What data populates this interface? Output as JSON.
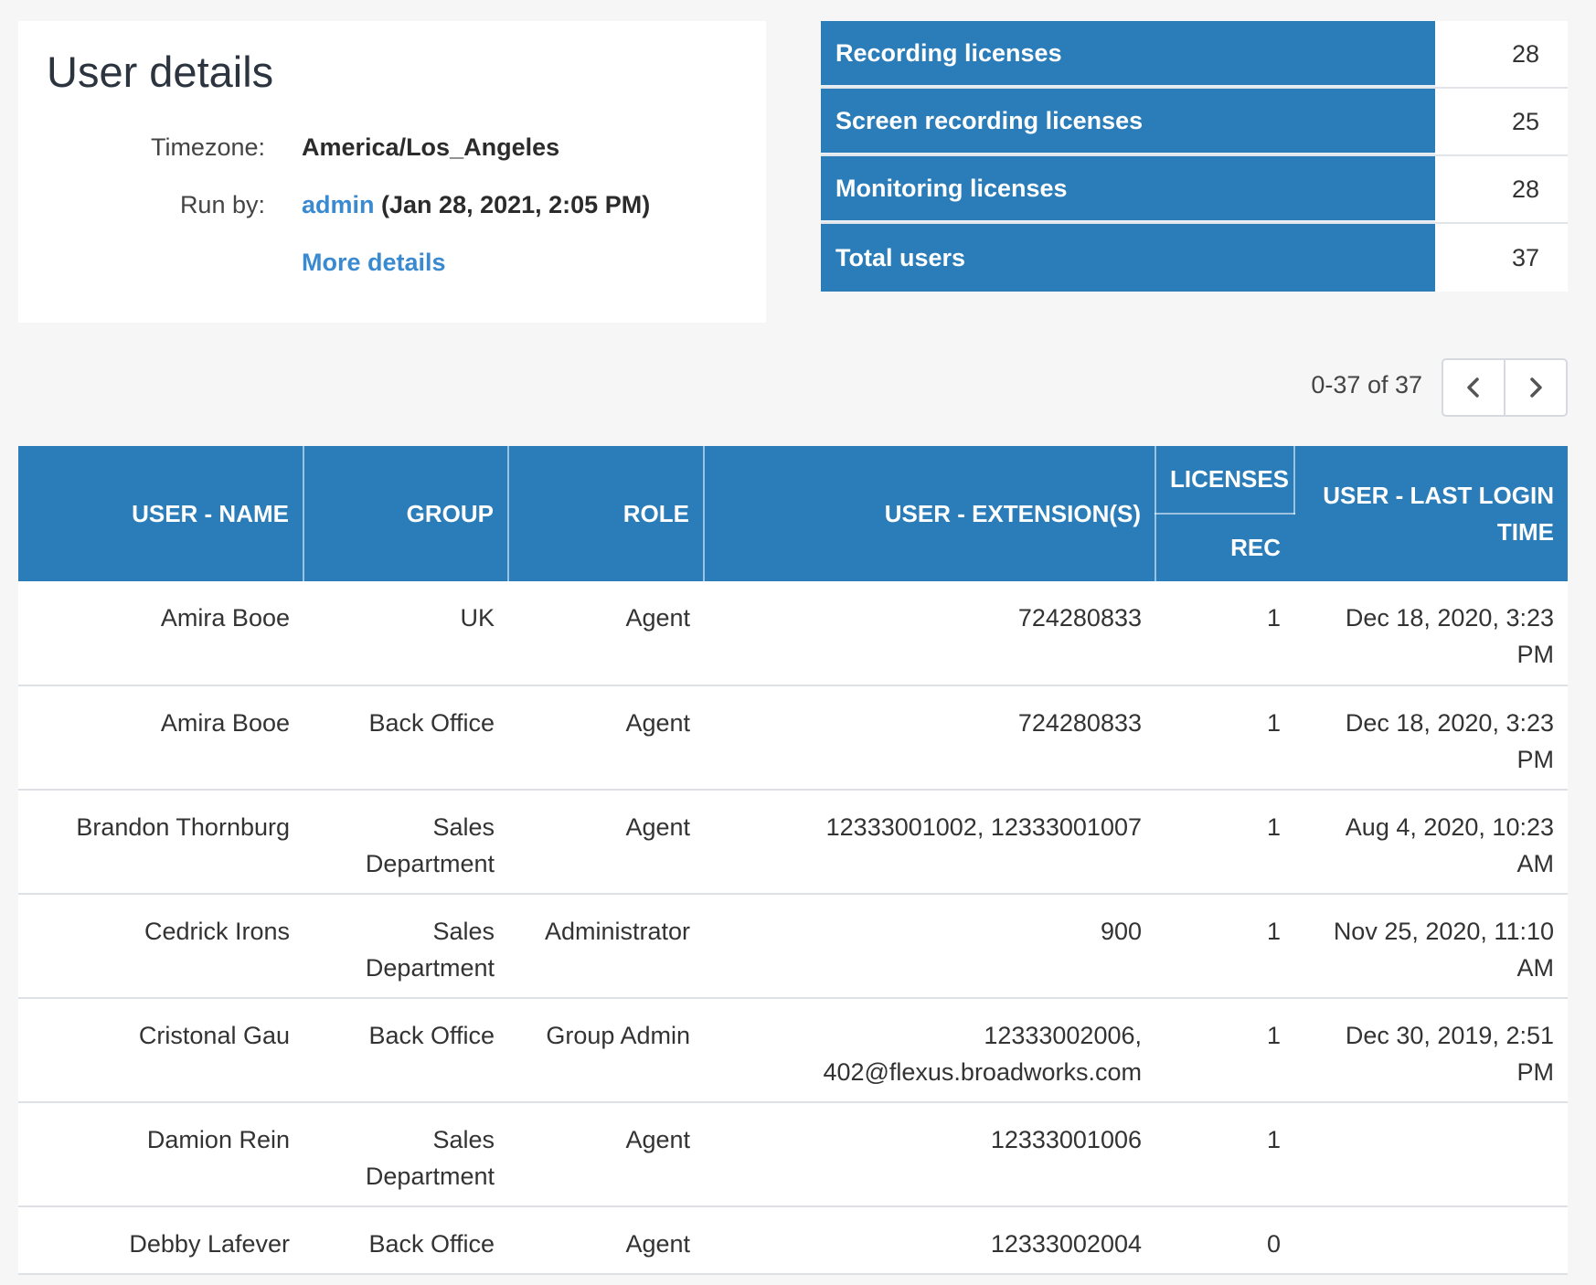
{
  "details": {
    "title": "User details",
    "timezone_label": "Timezone:",
    "timezone_value": "America/Los_Angeles",
    "runby_label": "Run by:",
    "runby_user": "admin",
    "runby_time": "(Jan 28, 2021, 2:05 PM)",
    "more_details": "More details"
  },
  "licenses": [
    {
      "label": "Recording licenses",
      "value": "28"
    },
    {
      "label": "Screen recording licenses",
      "value": "25"
    },
    {
      "label": "Monitoring licenses",
      "value": "28"
    },
    {
      "label": "Total users",
      "value": "37"
    }
  ],
  "pager": {
    "range": "0-37 of 37",
    "prev_icon": "chevron-left-icon",
    "next_icon": "chevron-right-icon"
  },
  "table": {
    "headers": {
      "name": "USER - NAME",
      "group": "GROUP",
      "role": "ROLE",
      "extension": "USER - EXTENSION(S)",
      "licenses": "LICENSES",
      "rec": "REC",
      "last_login": "USER - LAST LOGIN TIME"
    },
    "rows": [
      {
        "name": "Amira Booe",
        "group": "UK",
        "role": "Agent",
        "extension": "724280833",
        "rec": "1",
        "last_login": "Dec 18, 2020, 3:23 PM"
      },
      {
        "name": "Amira Booe",
        "group": "Back Office",
        "role": "Agent",
        "extension": "724280833",
        "rec": "1",
        "last_login": "Dec 18, 2020, 3:23 PM"
      },
      {
        "name": "Brandon Thornburg",
        "group": "Sales Department",
        "role": "Agent",
        "extension": "12333001002, 12333001007",
        "rec": "1",
        "last_login": "Aug 4, 2020, 10:23 AM"
      },
      {
        "name": "Cedrick Irons",
        "group": "Sales Department",
        "role": "Administrator",
        "extension": "900",
        "rec": "1",
        "last_login": "Nov 25, 2020, 11:10 AM"
      },
      {
        "name": "Cristonal Gau",
        "group": "Back Office",
        "role": "Group Admin",
        "extension": "12333002006, 402@flexus.broadworks.com",
        "rec": "1",
        "last_login": "Dec 30, 2019, 2:51 PM"
      },
      {
        "name": "Damion Rein",
        "group": "Sales Department",
        "role": "Agent",
        "extension": "12333001006",
        "rec": "1",
        "last_login": ""
      },
      {
        "name": "Debby Lafever",
        "group": "Back Office",
        "role": "Agent",
        "extension": "12333002004",
        "rec": "0",
        "last_login": ""
      }
    ]
  }
}
